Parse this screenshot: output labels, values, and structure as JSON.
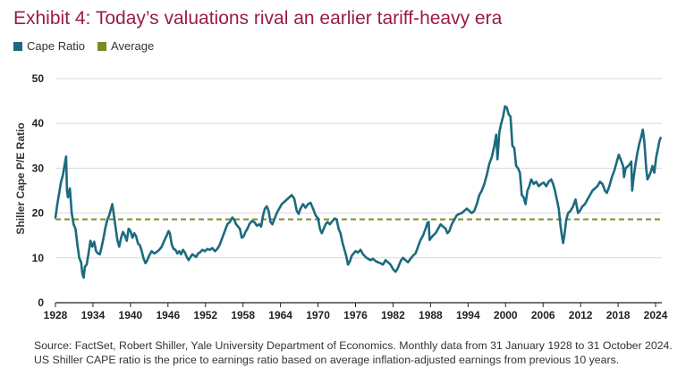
{
  "header": {
    "title": "Exhibit 4: Today’s valuations rival an earlier tariff-heavy era"
  },
  "colors": {
    "title": "#9b1b47",
    "series": "#1b6a7e",
    "average": "#7d8b23",
    "grid": "#d9d9d9",
    "axis": "#222222"
  },
  "chart_data": {
    "type": "line",
    "title": "",
    "xlabel": "",
    "ylabel": "Shiller Cape P/E Ratio",
    "xlim": [
      1928,
      2025
    ],
    "ylim": [
      0,
      50
    ],
    "x_ticks": [
      1928,
      1934,
      1940,
      1946,
      1952,
      1958,
      1964,
      1970,
      1976,
      1982,
      1988,
      1994,
      2000,
      2006,
      2012,
      2018,
      2024
    ],
    "y_ticks": [
      0,
      10,
      20,
      30,
      40,
      50
    ],
    "grid": "horizontal",
    "legend": "top-left",
    "legend_items": [
      {
        "label": "Cape Ratio",
        "style": "square"
      },
      {
        "label": "Average",
        "style": "square"
      }
    ],
    "average": 18.6,
    "series": [
      {
        "name": "Cape Ratio",
        "points": [
          [
            1928.0,
            19.0
          ],
          [
            1928.3,
            22.0
          ],
          [
            1928.6,
            24.5
          ],
          [
            1928.9,
            27.0
          ],
          [
            1929.2,
            28.5
          ],
          [
            1929.5,
            31.0
          ],
          [
            1929.7,
            32.6
          ],
          [
            1929.85,
            25.0
          ],
          [
            1930.0,
            23.5
          ],
          [
            1930.3,
            25.5
          ],
          [
            1930.6,
            20.0
          ],
          [
            1930.9,
            17.5
          ],
          [
            1931.2,
            16.5
          ],
          [
            1931.5,
            13.0
          ],
          [
            1931.8,
            10.0
          ],
          [
            1932.1,
            9.0
          ],
          [
            1932.3,
            6.5
          ],
          [
            1932.5,
            5.6
          ],
          [
            1932.7,
            8.0
          ],
          [
            1933.0,
            8.5
          ],
          [
            1933.3,
            11.0
          ],
          [
            1933.6,
            13.8
          ],
          [
            1933.9,
            12.5
          ],
          [
            1934.2,
            13.6
          ],
          [
            1934.5,
            11.5
          ],
          [
            1934.8,
            11.0
          ],
          [
            1935.1,
            10.8
          ],
          [
            1935.4,
            12.5
          ],
          [
            1935.7,
            14.5
          ],
          [
            1936.0,
            16.8
          ],
          [
            1936.3,
            18.5
          ],
          [
            1936.6,
            19.5
          ],
          [
            1936.9,
            21.0
          ],
          [
            1937.1,
            22.0
          ],
          [
            1937.3,
            20.0
          ],
          [
            1937.6,
            17.0
          ],
          [
            1937.9,
            14.0
          ],
          [
            1938.2,
            12.5
          ],
          [
            1938.5,
            14.5
          ],
          [
            1938.8,
            15.8
          ],
          [
            1939.1,
            15.0
          ],
          [
            1939.4,
            13.8
          ],
          [
            1939.7,
            16.5
          ],
          [
            1940.0,
            16.0
          ],
          [
            1940.3,
            14.5
          ],
          [
            1940.6,
            15.5
          ],
          [
            1940.9,
            14.8
          ],
          [
            1941.2,
            13.2
          ],
          [
            1941.5,
            12.8
          ],
          [
            1941.8,
            11.5
          ],
          [
            1942.1,
            9.8
          ],
          [
            1942.4,
            8.8
          ],
          [
            1942.7,
            9.5
          ],
          [
            1943.0,
            10.5
          ],
          [
            1943.4,
            11.5
          ],
          [
            1943.8,
            11.0
          ],
          [
            1944.2,
            11.3
          ],
          [
            1944.6,
            11.8
          ],
          [
            1945.0,
            12.5
          ],
          [
            1945.4,
            13.8
          ],
          [
            1945.8,
            15.0
          ],
          [
            1946.1,
            16.0
          ],
          [
            1946.3,
            15.5
          ],
          [
            1946.6,
            13.0
          ],
          [
            1946.9,
            12.0
          ],
          [
            1947.2,
            11.8
          ],
          [
            1947.5,
            11.0
          ],
          [
            1947.8,
            11.5
          ],
          [
            1948.1,
            10.8
          ],
          [
            1948.4,
            11.8
          ],
          [
            1948.7,
            11.2
          ],
          [
            1949.0,
            10.2
          ],
          [
            1949.3,
            9.5
          ],
          [
            1949.6,
            10.2
          ],
          [
            1949.9,
            10.8
          ],
          [
            1950.2,
            10.5
          ],
          [
            1950.5,
            10.2
          ],
          [
            1950.8,
            11.0
          ],
          [
            1951.1,
            11.2
          ],
          [
            1951.5,
            11.8
          ],
          [
            1951.9,
            11.5
          ],
          [
            1952.3,
            12.0
          ],
          [
            1952.7,
            11.8
          ],
          [
            1953.1,
            12.2
          ],
          [
            1953.5,
            11.5
          ],
          [
            1953.9,
            12.0
          ],
          [
            1954.3,
            13.0
          ],
          [
            1954.7,
            14.5
          ],
          [
            1955.1,
            16.0
          ],
          [
            1955.5,
            17.5
          ],
          [
            1955.9,
            18.0
          ],
          [
            1956.3,
            19.0
          ],
          [
            1956.6,
            18.5
          ],
          [
            1956.9,
            17.5
          ],
          [
            1957.2,
            17.0
          ],
          [
            1957.5,
            16.5
          ],
          [
            1957.8,
            14.5
          ],
          [
            1958.1,
            14.8
          ],
          [
            1958.4,
            15.8
          ],
          [
            1958.7,
            16.5
          ],
          [
            1959.0,
            17.5
          ],
          [
            1959.4,
            18.2
          ],
          [
            1959.8,
            18.0
          ],
          [
            1960.2,
            17.2
          ],
          [
            1960.6,
            17.5
          ],
          [
            1960.9,
            17.0
          ],
          [
            1961.2,
            19.5
          ],
          [
            1961.5,
            21.0
          ],
          [
            1961.8,
            21.5
          ],
          [
            1962.1,
            20.5
          ],
          [
            1962.4,
            18.0
          ],
          [
            1962.7,
            17.5
          ],
          [
            1963.0,
            18.5
          ],
          [
            1963.4,
            20.0
          ],
          [
            1963.8,
            21.0
          ],
          [
            1964.2,
            22.0
          ],
          [
            1964.6,
            22.5
          ],
          [
            1965.0,
            23.0
          ],
          [
            1965.4,
            23.5
          ],
          [
            1965.8,
            24.0
          ],
          [
            1966.2,
            23.2
          ],
          [
            1966.6,
            20.5
          ],
          [
            1966.9,
            19.8
          ],
          [
            1967.2,
            21.0
          ],
          [
            1967.6,
            22.0
          ],
          [
            1968.0,
            21.2
          ],
          [
            1968.4,
            22.0
          ],
          [
            1968.8,
            22.3
          ],
          [
            1969.2,
            21.0
          ],
          [
            1969.6,
            19.5
          ],
          [
            1970.0,
            18.8
          ],
          [
            1970.3,
            16.5
          ],
          [
            1970.6,
            15.5
          ],
          [
            1970.9,
            16.5
          ],
          [
            1971.2,
            17.5
          ],
          [
            1971.5,
            18.0
          ],
          [
            1971.9,
            17.5
          ],
          [
            1972.3,
            18.2
          ],
          [
            1972.7,
            18.8
          ],
          [
            1973.0,
            18.5
          ],
          [
            1973.3,
            16.5
          ],
          [
            1973.6,
            15.5
          ],
          [
            1973.9,
            13.5
          ],
          [
            1974.2,
            12.0
          ],
          [
            1974.5,
            10.5
          ],
          [
            1974.8,
            8.5
          ],
          [
            1975.1,
            9.2
          ],
          [
            1975.4,
            10.5
          ],
          [
            1975.7,
            11.0
          ],
          [
            1976.0,
            11.5
          ],
          [
            1976.4,
            11.2
          ],
          [
            1976.8,
            11.8
          ],
          [
            1977.2,
            10.8
          ],
          [
            1977.6,
            10.2
          ],
          [
            1978.0,
            9.8
          ],
          [
            1978.4,
            9.5
          ],
          [
            1978.8,
            9.8
          ],
          [
            1979.2,
            9.3
          ],
          [
            1979.6,
            9.0
          ],
          [
            1980.0,
            8.8
          ],
          [
            1980.4,
            8.5
          ],
          [
            1980.8,
            9.5
          ],
          [
            1981.2,
            9.0
          ],
          [
            1981.6,
            8.5
          ],
          [
            1982.0,
            7.5
          ],
          [
            1982.4,
            6.9
          ],
          [
            1982.7,
            7.5
          ],
          [
            1983.0,
            8.5
          ],
          [
            1983.3,
            9.5
          ],
          [
            1983.6,
            10.0
          ],
          [
            1984.0,
            9.5
          ],
          [
            1984.4,
            9.0
          ],
          [
            1984.8,
            9.8
          ],
          [
            1985.2,
            10.5
          ],
          [
            1985.6,
            11.0
          ],
          [
            1986.0,
            12.5
          ],
          [
            1986.4,
            14.0
          ],
          [
            1986.8,
            15.0
          ],
          [
            1987.2,
            16.5
          ],
          [
            1987.5,
            17.8
          ],
          [
            1987.7,
            18.0
          ],
          [
            1987.85,
            14.0
          ],
          [
            1988.1,
            14.5
          ],
          [
            1988.4,
            15.0
          ],
          [
            1988.8,
            15.5
          ],
          [
            1989.2,
            16.5
          ],
          [
            1989.6,
            17.5
          ],
          [
            1990.0,
            17.0
          ],
          [
            1990.4,
            16.5
          ],
          [
            1990.7,
            15.5
          ],
          [
            1991.0,
            16.0
          ],
          [
            1991.4,
            17.5
          ],
          [
            1991.8,
            18.5
          ],
          [
            1992.2,
            19.5
          ],
          [
            1992.6,
            19.8
          ],
          [
            1993.0,
            20.0
          ],
          [
            1993.4,
            20.5
          ],
          [
            1993.8,
            21.0
          ],
          [
            1994.2,
            20.5
          ],
          [
            1994.6,
            20.0
          ],
          [
            1995.0,
            20.5
          ],
          [
            1995.4,
            22.0
          ],
          [
            1995.8,
            24.0
          ],
          [
            1996.2,
            25.0
          ],
          [
            1996.6,
            26.5
          ],
          [
            1997.0,
            28.5
          ],
          [
            1997.4,
            31.0
          ],
          [
            1997.8,
            32.5
          ],
          [
            1998.2,
            35.0
          ],
          [
            1998.5,
            37.5
          ],
          [
            1998.7,
            32.0
          ],
          [
            1999.0,
            38.0
          ],
          [
            1999.3,
            40.0
          ],
          [
            1999.6,
            41.5
          ],
          [
            1999.9,
            43.8
          ],
          [
            2000.2,
            43.5
          ],
          [
            2000.5,
            42.0
          ],
          [
            2000.8,
            41.5
          ],
          [
            2001.1,
            35.0
          ],
          [
            2001.4,
            34.5
          ],
          [
            2001.7,
            30.5
          ],
          [
            2002.0,
            30.0
          ],
          [
            2002.3,
            29.0
          ],
          [
            2002.6,
            24.0
          ],
          [
            2002.9,
            23.5
          ],
          [
            2003.2,
            22.0
          ],
          [
            2003.5,
            25.0
          ],
          [
            2003.8,
            26.0
          ],
          [
            2004.1,
            27.5
          ],
          [
            2004.5,
            26.5
          ],
          [
            2004.9,
            27.0
          ],
          [
            2005.3,
            26.0
          ],
          [
            2005.7,
            26.5
          ],
          [
            2006.1,
            26.8
          ],
          [
            2006.5,
            26.0
          ],
          [
            2006.9,
            27.0
          ],
          [
            2007.3,
            27.5
          ],
          [
            2007.6,
            26.5
          ],
          [
            2007.9,
            25.0
          ],
          [
            2008.2,
            23.0
          ],
          [
            2008.5,
            21.0
          ],
          [
            2008.8,
            17.0
          ],
          [
            2009.0,
            15.0
          ],
          [
            2009.2,
            13.3
          ],
          [
            2009.4,
            15.0
          ],
          [
            2009.7,
            18.5
          ],
          [
            2010.0,
            20.0
          ],
          [
            2010.4,
            20.5
          ],
          [
            2010.8,
            21.5
          ],
          [
            2011.2,
            23.0
          ],
          [
            2011.6,
            20.0
          ],
          [
            2011.9,
            20.5
          ],
          [
            2012.3,
            21.5
          ],
          [
            2012.7,
            22.0
          ],
          [
            2013.1,
            23.0
          ],
          [
            2013.5,
            24.0
          ],
          [
            2013.9,
            25.0
          ],
          [
            2014.3,
            25.5
          ],
          [
            2014.7,
            26.0
          ],
          [
            2015.1,
            27.0
          ],
          [
            2015.5,
            26.5
          ],
          [
            2015.9,
            25.0
          ],
          [
            2016.2,
            24.5
          ],
          [
            2016.6,
            26.0
          ],
          [
            2017.0,
            28.0
          ],
          [
            2017.4,
            29.5
          ],
          [
            2017.8,
            31.5
          ],
          [
            2018.1,
            33.0
          ],
          [
            2018.4,
            32.0
          ],
          [
            2018.8,
            30.5
          ],
          [
            2018.95,
            28.0
          ],
          [
            2019.2,
            30.0
          ],
          [
            2019.6,
            30.5
          ],
          [
            2019.9,
            31.0
          ],
          [
            2020.1,
            31.5
          ],
          [
            2020.25,
            25.0
          ],
          [
            2020.5,
            28.0
          ],
          [
            2020.8,
            31.0
          ],
          [
            2021.1,
            33.5
          ],
          [
            2021.4,
            35.5
          ],
          [
            2021.7,
            37.0
          ],
          [
            2021.95,
            38.6
          ],
          [
            2022.2,
            36.0
          ],
          [
            2022.5,
            30.0
          ],
          [
            2022.7,
            27.5
          ],
          [
            2022.9,
            28.0
          ],
          [
            2023.2,
            29.0
          ],
          [
            2023.5,
            30.5
          ],
          [
            2023.8,
            29.0
          ],
          [
            2024.1,
            32.5
          ],
          [
            2024.4,
            34.5
          ],
          [
            2024.6,
            36.0
          ],
          [
            2024.8,
            36.8
          ]
        ]
      }
    ]
  },
  "source": {
    "text": "Source: FactSet, Robert Shiller, Yale University Department of Economics. Monthly data from 31 January 1928 to 31 October 2024. US Shiller CAPE ratio is the price to earnings ratio based on average inflation-adjusted earnings from previous 10 years."
  }
}
